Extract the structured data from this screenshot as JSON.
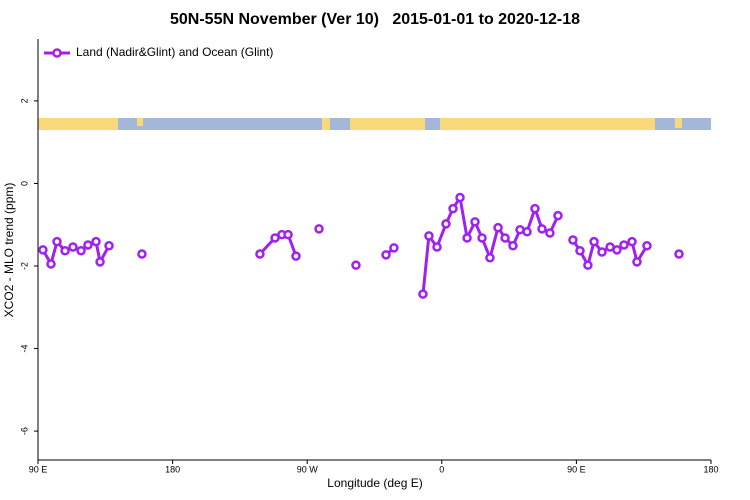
{
  "chart_data": {
    "type": "line",
    "title": "50N-55N November (Ver 10)   2015-01-01 to 2020-12-18",
    "x_label": "Longitude (deg E)",
    "y_label": "XCO2 - MLO trend (ppm)",
    "xlim": [
      90,
      540
    ],
    "ylim": [
      -6.7,
      3.5
    ],
    "xticks": [
      {
        "value": 90,
        "label": "90 E"
      },
      {
        "value": 180,
        "label": "180"
      },
      {
        "value": 270,
        "label": "90 W"
      },
      {
        "value": 360,
        "label": "0"
      },
      {
        "value": 450,
        "label": "90 E"
      },
      {
        "value": 540,
        "label": "180"
      }
    ],
    "yticks": [
      2,
      0,
      -2,
      -4,
      -6
    ],
    "legend": "top-left",
    "series": [
      {
        "name": "Land (Nadir&Glint) and Ocean (Glint)",
        "color": "#a020f0",
        "x": [
          93.3,
          98.7,
          102.7,
          108.1,
          113.4,
          118.8,
          123.4,
          128.8,
          131.5,
          137.5,
          null,
          159.5,
          null,
          238.4,
          248.5,
          253.1,
          257.2,
          262.5,
          null,
          277.9,
          null,
          302.6,
          null,
          322.7,
          328.0,
          null,
          347.4,
          351.4,
          356.8,
          362.8,
          367.5,
          372.2,
          376.9,
          382.2,
          386.9,
          392.2,
          397.6,
          402.3,
          407.6,
          412.3,
          417.0,
          422.3,
          427.0,
          432.3,
          437.7,
          null,
          447.7,
          452.4,
          457.7,
          461.8,
          467.1,
          472.5,
          477.1,
          481.8,
          487.2,
          490.5,
          497.2,
          null,
          518.6
        ],
        "values": [
          -1.61,
          -1.95,
          -1.41,
          -1.63,
          -1.54,
          -1.63,
          -1.49,
          -1.41,
          -1.9,
          -1.51,
          null,
          -1.71,
          null,
          -1.71,
          -1.32,
          -1.24,
          -1.24,
          -1.76,
          null,
          -1.1,
          null,
          -1.98,
          null,
          -1.73,
          -1.56,
          null,
          -2.68,
          -1.27,
          -1.54,
          -0.98,
          -0.61,
          -0.34,
          -1.32,
          -0.93,
          -1.32,
          -1.8,
          -1.07,
          -1.32,
          -1.51,
          -1.12,
          -1.17,
          -0.61,
          -1.1,
          -1.2,
          -0.78,
          null,
          -1.37,
          -1.63,
          -1.98,
          -1.41,
          -1.66,
          -1.54,
          -1.61,
          -1.49,
          -1.41,
          -1.9,
          -1.51,
          null,
          -1.71
        ]
      }
    ]
  }
}
